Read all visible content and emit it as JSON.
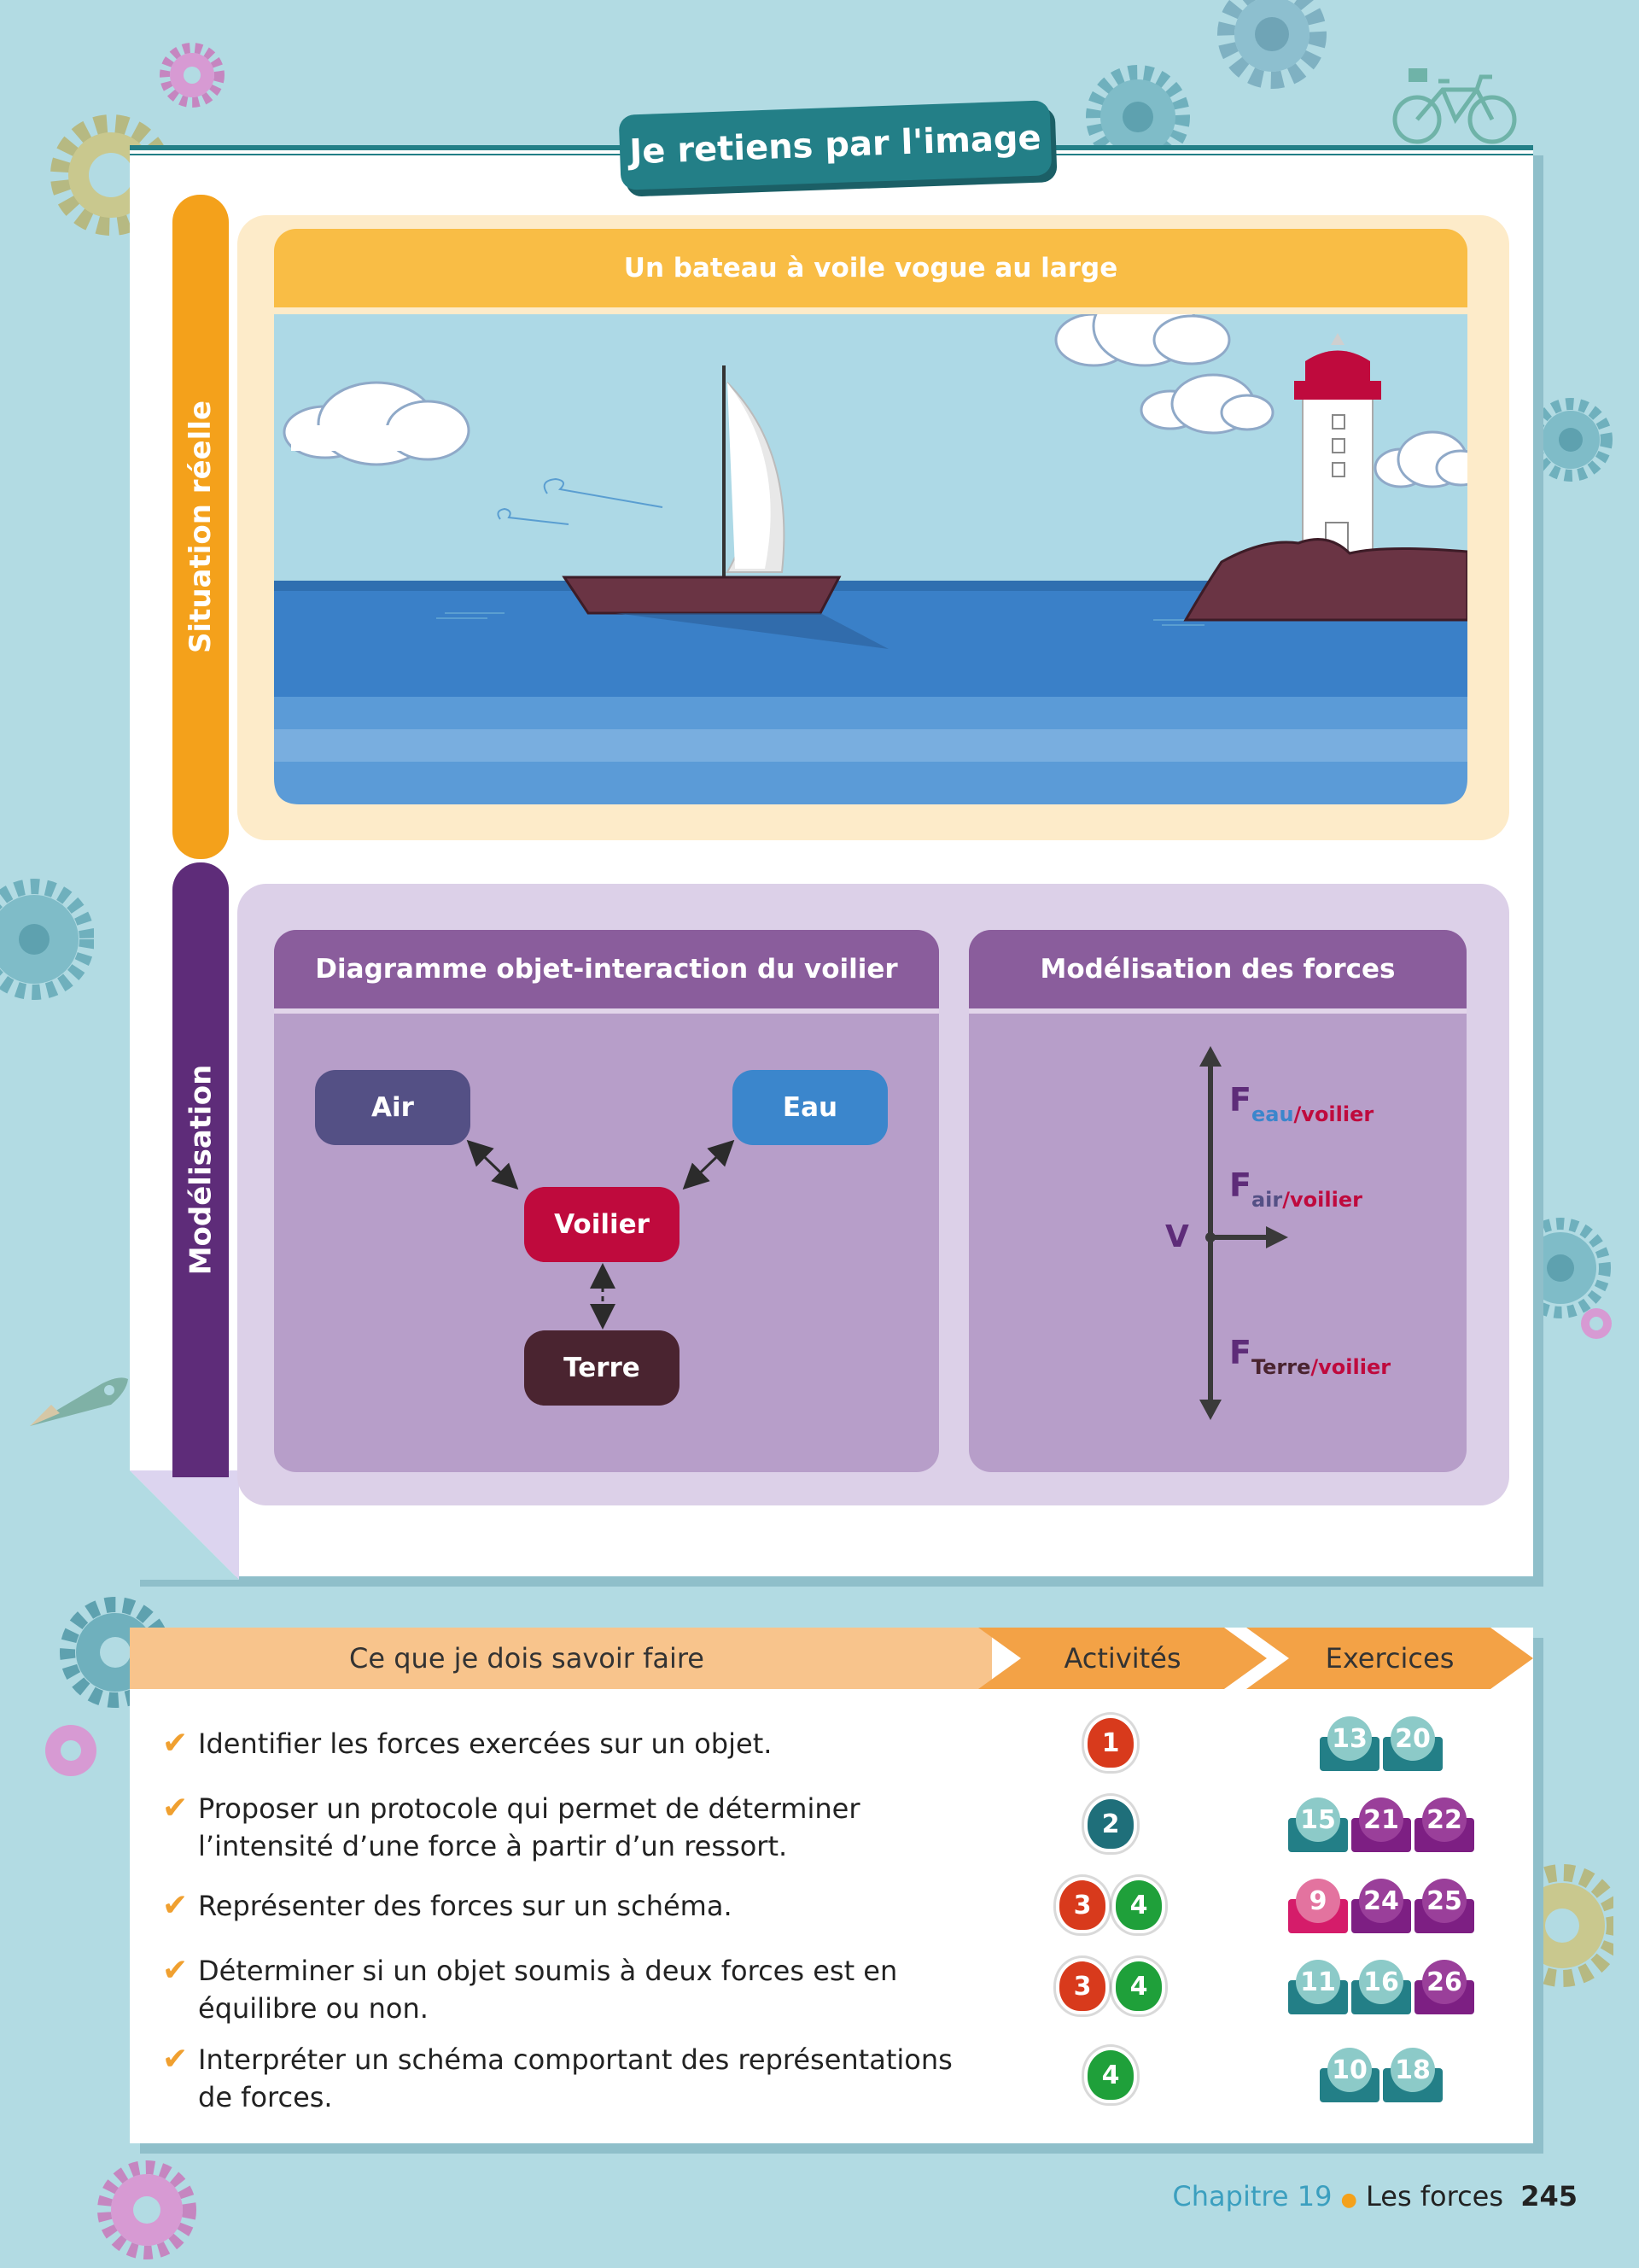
{
  "colors": {
    "page_bg": "#b2dbe3",
    "teal": "#237f87",
    "orange": "#f4a11b",
    "purple": "#5e2c79",
    "diagram_purple": "#8a5d9c",
    "air_box": "#545085",
    "eau_box": "#3b86cc",
    "voilier_box": "#bf0a3d",
    "terre_box": "#4a2430",
    "check_orange": "#f0a030"
  },
  "page_title": "Je retiens par l'image",
  "situation": {
    "side_label": "Situation réelle",
    "heading": "Un bateau à voile vogue au large"
  },
  "modelisation": {
    "side_label": "Modélisation",
    "diagram": {
      "heading": "Diagramme objet-interaction du voilier",
      "nodes": {
        "air": "Air",
        "eau": "Eau",
        "voilier": "Voilier",
        "terre": "Terre"
      }
    },
    "forces": {
      "heading": "Modélisation des forces",
      "point_label": "V",
      "force_letter": "F",
      "f1": {
        "part1": "eau",
        "part2": "/voilier"
      },
      "f2": {
        "part1": "air",
        "part2": "/voilier"
      },
      "f3": {
        "part1": "Terre",
        "part2": "/voilier"
      }
    }
  },
  "skills_table": {
    "headers": {
      "skills": "Ce que je dois savoir faire",
      "activities": "Activités",
      "exercises": "Exercices"
    },
    "check_mark": "✔",
    "rows": [
      {
        "text": "Identifier les forces exercées sur un objet.",
        "activities": [
          {
            "n": "1",
            "color": "#d83a1c"
          }
        ],
        "exercises": [
          {
            "n": "13",
            "color": "teal"
          },
          {
            "n": "20",
            "color": "teal"
          }
        ]
      },
      {
        "text": "Proposer un protocole qui permet de déterminer l’intensité d’une force à partir d’un ressort.",
        "activities": [
          {
            "n": "2",
            "color": "#1f6f7a"
          }
        ],
        "exercises": [
          {
            "n": "15",
            "color": "teal"
          },
          {
            "n": "21",
            "color": "purple"
          },
          {
            "n": "22",
            "color": "purple"
          }
        ]
      },
      {
        "text": "Représenter des forces sur un schéma.",
        "activities": [
          {
            "n": "3",
            "color": "#d83a1c"
          },
          {
            "n": "4",
            "color": "#1fa03a"
          }
        ],
        "exercises": [
          {
            "n": "9",
            "color": "pink"
          },
          {
            "n": "24",
            "color": "purple"
          },
          {
            "n": "25",
            "color": "purple"
          }
        ]
      },
      {
        "text": "Déterminer si un objet soumis à deux forces est en équilibre ou non.",
        "activities": [
          {
            "n": "3",
            "color": "#d83a1c"
          },
          {
            "n": "4",
            "color": "#1fa03a"
          }
        ],
        "exercises": [
          {
            "n": "11",
            "color": "teal"
          },
          {
            "n": "16",
            "color": "teal"
          },
          {
            "n": "26",
            "color": "purple"
          }
        ]
      },
      {
        "text": "Interpréter un schéma comportant des représentations de forces.",
        "activities": [
          {
            "n": "4",
            "color": "#1fa03a"
          }
        ],
        "exercises": [
          {
            "n": "10",
            "color": "teal"
          },
          {
            "n": "18",
            "color": "teal"
          }
        ]
      }
    ]
  },
  "footer": {
    "chapter": "Chapitre 19",
    "bullet": "●",
    "title": "Les forces",
    "page": "245"
  }
}
